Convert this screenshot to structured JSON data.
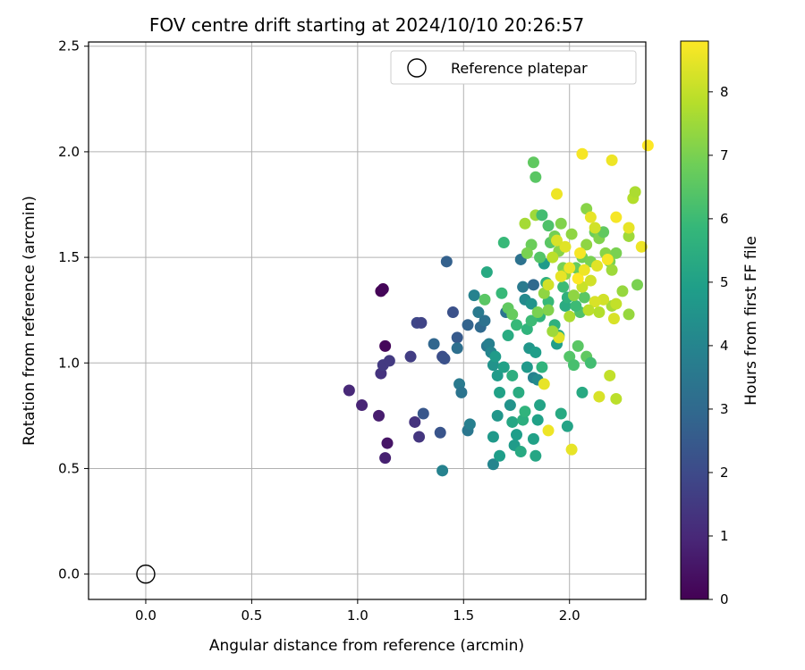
{
  "chart_data": {
    "type": "scatter",
    "title": "FOV centre drift starting at 2024/10/10 20:26:57",
    "xlabel": "Angular distance from reference (arcmin)",
    "ylabel": "Rotation from reference (arcmin)",
    "xlim": [
      -0.27,
      2.36
    ],
    "ylim": [
      -0.12,
      2.52
    ],
    "xticks": [
      "0.0",
      "0.5",
      "1.0",
      "1.5",
      "2.0"
    ],
    "yticks": [
      "0.0",
      "0.5",
      "1.0",
      "1.5",
      "2.0",
      "2.5"
    ],
    "grid": true,
    "legend_position": "top-right",
    "colormap": "viridis",
    "colorbar": {
      "label": "Hours from first FF file",
      "min": 0,
      "max": 8.8,
      "ticks": [
        "0",
        "1",
        "2",
        "3",
        "4",
        "5",
        "6",
        "7",
        "8"
      ]
    },
    "reference": {
      "label": "Reference platepar",
      "x": 0.0,
      "y": 0.0
    },
    "series": [
      {
        "points": [
          [
            1.11,
            1.34,
            0.05
          ],
          [
            1.12,
            1.35,
            0.1
          ],
          [
            1.13,
            1.08,
            0.15
          ],
          [
            1.14,
            0.62,
            0.5
          ],
          [
            1.13,
            0.55,
            0.8
          ],
          [
            1.1,
            0.75,
            0.7
          ],
          [
            1.02,
            0.8,
            0.9
          ],
          [
            0.96,
            0.87,
            1.0
          ],
          [
            1.11,
            0.95,
            1.3
          ],
          [
            1.12,
            0.99,
            1.5
          ],
          [
            1.15,
            1.01,
            1.5
          ],
          [
            1.25,
            1.03,
            1.6
          ],
          [
            1.27,
            0.72,
            1.3
          ],
          [
            1.29,
            0.65,
            1.4
          ],
          [
            1.28,
            1.19,
            1.9
          ],
          [
            1.3,
            1.19,
            1.8
          ],
          [
            1.31,
            0.76,
            2.4
          ],
          [
            1.39,
            0.67,
            2.3
          ],
          [
            1.4,
            1.03,
            2.1
          ],
          [
            1.41,
            1.02,
            2.2
          ],
          [
            1.45,
            1.24,
            2.2
          ],
          [
            1.47,
            1.12,
            2.5
          ],
          [
            1.36,
            1.09,
            2.9
          ],
          [
            1.42,
            1.48,
            2.7
          ],
          [
            1.52,
            1.18,
            2.8
          ],
          [
            1.47,
            1.07,
            3.2
          ],
          [
            1.48,
            0.9,
            3.6
          ],
          [
            1.49,
            0.86,
            3.4
          ],
          [
            1.52,
            0.68,
            3.5
          ],
          [
            1.53,
            0.71,
            3.8
          ],
          [
            1.4,
            0.49,
            3.9
          ],
          [
            1.55,
            1.32,
            3.9
          ],
          [
            1.57,
            1.24,
            3.6
          ],
          [
            1.58,
            1.17,
            3.0
          ],
          [
            1.6,
            1.2,
            3.3
          ],
          [
            1.61,
            1.08,
            3.5
          ],
          [
            1.62,
            1.09,
            3.8
          ],
          [
            1.63,
            1.05,
            4.0
          ],
          [
            1.64,
            0.99,
            4.5
          ],
          [
            1.65,
            1.03,
            4.8
          ],
          [
            1.66,
            0.94,
            4.8
          ],
          [
            1.64,
            0.52,
            4.0
          ],
          [
            1.64,
            0.65,
            4.7
          ],
          [
            1.66,
            0.75,
            4.6
          ],
          [
            1.67,
            0.86,
            5.0
          ],
          [
            1.67,
            0.56,
            4.9
          ],
          [
            1.69,
            0.98,
            5.0
          ],
          [
            1.7,
            1.24,
            3.4
          ],
          [
            1.71,
            1.13,
            5.4
          ],
          [
            1.72,
            0.8,
            4.5
          ],
          [
            1.73,
            0.94,
            5.5
          ],
          [
            1.73,
            0.72,
            5.2
          ],
          [
            1.74,
            0.61,
            4.8
          ],
          [
            1.75,
            0.66,
            4.9
          ],
          [
            1.76,
            0.86,
            5.4
          ],
          [
            1.78,
            0.73,
            5.5
          ],
          [
            1.77,
            0.58,
            5.3
          ],
          [
            1.79,
            0.77,
            5.7
          ],
          [
            1.8,
            0.98,
            4.7
          ],
          [
            1.81,
            1.07,
            4.6
          ],
          [
            1.79,
            1.3,
            4.2
          ],
          [
            1.78,
            1.36,
            3.6
          ],
          [
            1.77,
            1.49,
            3.3
          ],
          [
            1.83,
            1.37,
            3.0
          ],
          [
            1.82,
            1.28,
            4.5
          ],
          [
            1.84,
            1.05,
            4.9
          ],
          [
            1.83,
            0.64,
            5.0
          ],
          [
            1.84,
            0.56,
            5.2
          ],
          [
            1.85,
            0.73,
            5.0
          ],
          [
            1.86,
            0.8,
            5.1
          ],
          [
            1.87,
            0.98,
            5.7
          ],
          [
            1.83,
            0.93,
            3.9
          ],
          [
            1.85,
            0.92,
            4.2
          ],
          [
            1.86,
            1.22,
            5.7
          ],
          [
            1.88,
            1.47,
            4.8
          ],
          [
            1.89,
            1.38,
            5.6
          ],
          [
            1.9,
            1.29,
            5.9
          ],
          [
            1.93,
            1.18,
            5.6
          ],
          [
            1.94,
            1.09,
            4.9
          ],
          [
            1.95,
            1.13,
            5.4
          ],
          [
            1.97,
            1.36,
            6.0
          ],
          [
            1.98,
            1.27,
            5.4
          ],
          [
            1.99,
            1.31,
            5.6
          ],
          [
            1.96,
            0.76,
            5.3
          ],
          [
            1.99,
            0.7,
            5.1
          ],
          [
            2.0,
            1.03,
            6.4
          ],
          [
            2.02,
            0.99,
            6.2
          ],
          [
            2.04,
            1.08,
            6.5
          ],
          [
            2.06,
            0.86,
            5.3
          ],
          [
            2.08,
            1.03,
            6.6
          ],
          [
            2.1,
            1.0,
            6.1
          ],
          [
            2.05,
            1.24,
            6.3
          ],
          [
            2.07,
            1.31,
            6.5
          ],
          [
            2.03,
            1.27,
            6.0
          ],
          [
            1.69,
            1.57,
            5.9
          ],
          [
            1.61,
            1.43,
            5.3
          ],
          [
            1.6,
            1.3,
            6.5
          ],
          [
            1.68,
            1.33,
            5.9
          ],
          [
            1.71,
            1.26,
            6.6
          ],
          [
            1.73,
            1.23,
            6.7
          ],
          [
            1.75,
            1.18,
            5.9
          ],
          [
            1.8,
            1.16,
            5.7
          ],
          [
            1.82,
            1.2,
            6.0
          ],
          [
            1.83,
            1.95,
            6.6
          ],
          [
            1.84,
            1.88,
            6.5
          ],
          [
            1.82,
            1.56,
            6.8
          ],
          [
            1.8,
            1.52,
            7.0
          ],
          [
            1.79,
            1.66,
            7.6
          ],
          [
            1.84,
            1.7,
            7.5
          ],
          [
            1.86,
            1.5,
            6.4
          ],
          [
            1.87,
            1.7,
            6.1
          ],
          [
            1.9,
            1.65,
            6.3
          ],
          [
            1.91,
            1.57,
            6.5
          ],
          [
            1.93,
            1.6,
            6.9
          ],
          [
            1.95,
            1.53,
            7.2
          ],
          [
            1.97,
            1.45,
            7.0
          ],
          [
            1.98,
            1.42,
            7.4
          ],
          [
            1.96,
            1.66,
            7.1
          ],
          [
            2.01,
            1.61,
            7.3
          ],
          [
            2.03,
            1.45,
            6.7
          ],
          [
            2.06,
            1.5,
            6.9
          ],
          [
            2.08,
            1.56,
            7.3
          ],
          [
            2.1,
            1.48,
            7.0
          ],
          [
            2.12,
            1.62,
            6.8
          ],
          [
            2.14,
            1.59,
            7.1
          ],
          [
            2.16,
            1.62,
            6.6
          ],
          [
            2.17,
            1.52,
            7.2
          ],
          [
            2.19,
            1.48,
            7.0
          ],
          [
            2.2,
            1.44,
            7.5
          ],
          [
            2.22,
            1.52,
            7.0
          ],
          [
            2.25,
            1.34,
            7.4
          ],
          [
            2.28,
            1.6,
            7.5
          ],
          [
            2.3,
            1.78,
            7.8
          ],
          [
            2.31,
            1.81,
            7.7
          ],
          [
            2.32,
            1.37,
            7.0
          ],
          [
            2.28,
            1.23,
            7.4
          ],
          [
            2.2,
            1.27,
            7.6
          ],
          [
            2.22,
            1.28,
            8.0
          ],
          [
            2.16,
            1.3,
            8.2
          ],
          [
            2.14,
            1.24,
            7.8
          ],
          [
            2.12,
            1.29,
            8.3
          ],
          [
            2.09,
            1.25,
            7.9
          ],
          [
            2.06,
            1.36,
            8.1
          ],
          [
            2.02,
            1.32,
            7.3
          ],
          [
            2.0,
            1.22,
            7.7
          ],
          [
            1.95,
            1.12,
            8.4
          ],
          [
            1.92,
            1.15,
            7.5
          ],
          [
            1.9,
            1.25,
            7.1
          ],
          [
            1.88,
            1.33,
            7.3
          ],
          [
            1.85,
            1.24,
            7.0
          ],
          [
            2.19,
            0.94,
            8.0
          ],
          [
            2.22,
            0.83,
            7.9
          ],
          [
            2.14,
            0.84,
            8.3
          ],
          [
            2.01,
            0.59,
            8.5
          ],
          [
            1.9,
            0.68,
            8.6
          ],
          [
            1.88,
            0.9,
            8.5
          ],
          [
            1.94,
            1.8,
            8.6
          ],
          [
            2.06,
            1.99,
            8.7
          ],
          [
            2.2,
            1.96,
            8.6
          ],
          [
            2.22,
            1.69,
            8.7
          ],
          [
            2.28,
            1.64,
            8.5
          ],
          [
            2.34,
            1.55,
            8.6
          ],
          [
            2.37,
            2.03,
            8.8
          ],
          [
            2.08,
            1.73,
            7.2
          ],
          [
            2.1,
            1.69,
            8.5
          ],
          [
            2.12,
            1.64,
            8.2
          ],
          [
            2.05,
            1.52,
            8.7
          ],
          [
            2.0,
            1.45,
            8.6
          ],
          [
            1.98,
            1.55,
            8.4
          ],
          [
            1.94,
            1.58,
            8.3
          ],
          [
            1.92,
            1.5,
            7.9
          ],
          [
            1.9,
            1.37,
            8.2
          ],
          [
            1.96,
            1.41,
            8.5
          ],
          [
            2.04,
            1.4,
            8.8
          ],
          [
            2.07,
            1.44,
            8.6
          ],
          [
            2.1,
            1.39,
            8.2
          ],
          [
            2.13,
            1.46,
            8.4
          ],
          [
            2.18,
            1.49,
            8.7
          ],
          [
            2.21,
            1.21,
            8.3
          ]
        ]
      }
    ]
  }
}
